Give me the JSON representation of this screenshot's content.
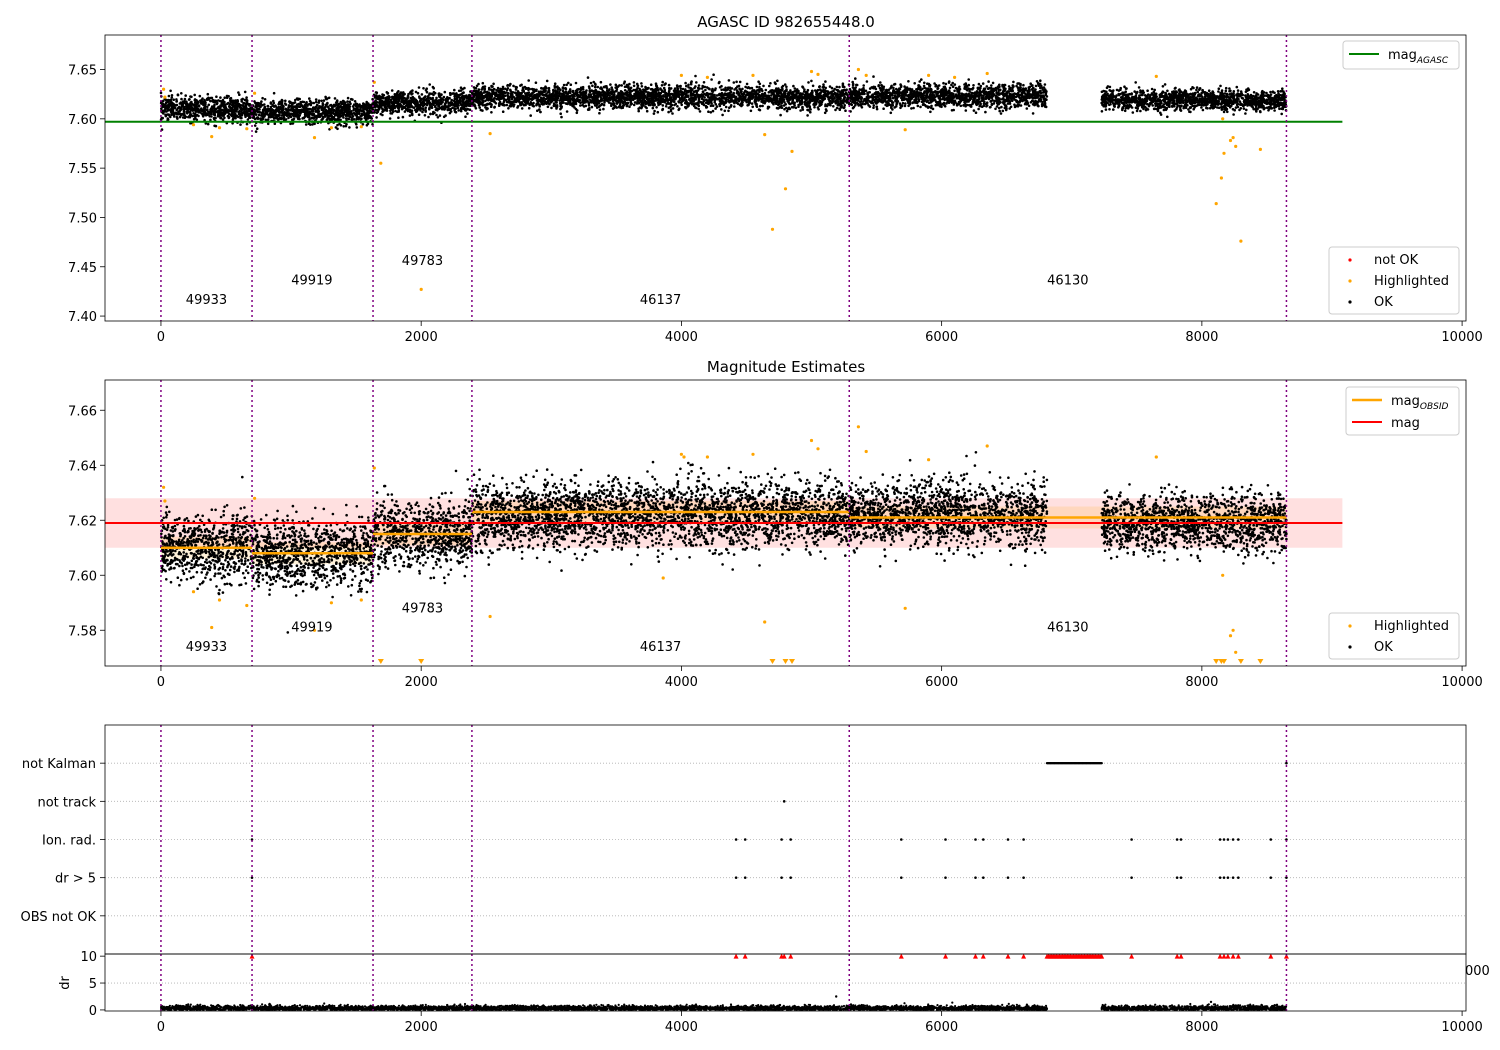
{
  "chart_data": [
    {
      "type": "scatter",
      "title": "AGASC ID 982655448.0",
      "xlim": [
        -430,
        10030
      ],
      "ylim": [
        7.395,
        7.685
      ],
      "xticks": [
        0,
        2000,
        4000,
        6000,
        8000,
        10000
      ],
      "yticks": [
        7.4,
        7.45,
        7.5,
        7.55,
        7.6,
        7.65
      ],
      "obsid_boundaries": [
        0,
        700,
        1630,
        2390,
        5290,
        8650
      ],
      "obsid_labels": [
        {
          "label": "49933",
          "x": 350,
          "y": 7.412
        },
        {
          "label": "49919",
          "x": 1160,
          "y": 7.432
        },
        {
          "label": "49783",
          "x": 2010,
          "y": 7.452
        },
        {
          "label": "46137",
          "x": 3840,
          "y": 7.412
        },
        {
          "label": "46130",
          "x": 6970,
          "y": 7.432
        }
      ],
      "segments": [
        {
          "x0": 0,
          "x1": 700,
          "level": 7.61,
          "spread": 0.006
        },
        {
          "x0": 700,
          "x1": 1630,
          "level": 7.607,
          "spread": 0.006
        },
        {
          "x0": 1630,
          "x1": 2390,
          "level": 7.616,
          "spread": 0.006
        },
        {
          "x0": 2390,
          "x1": 5290,
          "level": 7.622,
          "spread": 0.006
        },
        {
          "x0": 5290,
          "x1": 6810,
          "level": 7.623,
          "spread": 0.006
        },
        {
          "x0": 7230,
          "x1": 8650,
          "level": 7.619,
          "spread": 0.005
        }
      ],
      "mag_agasc": {
        "value": 7.597,
        "x0": -430,
        "x1": 9080,
        "color": "#008000"
      },
      "highlighted_points": [
        [
          20,
          7.63
        ],
        [
          30,
          7.622
        ],
        [
          250,
          7.594
        ],
        [
          390,
          7.582
        ],
        [
          450,
          7.591
        ],
        [
          660,
          7.59
        ],
        [
          720,
          7.626
        ],
        [
          1180,
          7.581
        ],
        [
          1310,
          7.591
        ],
        [
          1540,
          7.592
        ],
        [
          1640,
          7.637
        ],
        [
          1690,
          7.555
        ],
        [
          2000,
          7.427
        ],
        [
          2530,
          7.585
        ],
        [
          4000,
          7.644
        ],
        [
          4200,
          7.642
        ],
        [
          4550,
          7.644
        ],
        [
          4640,
          7.584
        ],
        [
          4700,
          7.488
        ],
        [
          4800,
          7.529
        ],
        [
          4850,
          7.567
        ],
        [
          5000,
          7.648
        ],
        [
          5050,
          7.645
        ],
        [
          5360,
          7.65
        ],
        [
          5420,
          7.644
        ],
        [
          5720,
          7.589
        ],
        [
          5900,
          7.644
        ],
        [
          6100,
          7.642
        ],
        [
          6350,
          7.646
        ],
        [
          7650,
          7.643
        ],
        [
          8110,
          7.514
        ],
        [
          8150,
          7.54
        ],
        [
          8160,
          7.6
        ],
        [
          8170,
          7.565
        ],
        [
          8220,
          7.578
        ],
        [
          8240,
          7.581
        ],
        [
          8260,
          7.572
        ],
        [
          8300,
          7.476
        ],
        [
          8450,
          7.569
        ]
      ],
      "legend_lines": [
        {
          "label": "mag",
          "sub": "AGASC",
          "color": "#008000"
        }
      ],
      "legend_points": [
        {
          "label": "not OK",
          "color": "#ff0000"
        },
        {
          "label": "Highlighted",
          "color": "#ffa500"
        },
        {
          "label": "OK",
          "color": "#000000"
        }
      ]
    },
    {
      "type": "scatter",
      "title": "Magnitude Estimates",
      "xlim": [
        -430,
        10030
      ],
      "ylim": [
        7.567,
        7.671
      ],
      "xticks": [
        0,
        2000,
        4000,
        6000,
        8000,
        10000
      ],
      "yticks": [
        7.58,
        7.6,
        7.62,
        7.64,
        7.66
      ],
      "obsid_boundaries": [
        0,
        700,
        1630,
        2390,
        5290,
        8650
      ],
      "obsid_labels": [
        {
          "label": "49933",
          "x": 350,
          "y": 7.5725
        },
        {
          "label": "49919",
          "x": 1160,
          "y": 7.5795
        },
        {
          "label": "49783",
          "x": 2010,
          "y": 7.5865
        },
        {
          "label": "46137",
          "x": 3840,
          "y": 7.5725
        },
        {
          "label": "46130",
          "x": 6970,
          "y": 7.5795
        }
      ],
      "segments": [
        {
          "x0": 0,
          "x1": 700,
          "level": 7.61,
          "spread": 0.006
        },
        {
          "x0": 700,
          "x1": 1630,
          "level": 7.608,
          "spread": 0.006
        },
        {
          "x0": 1630,
          "x1": 2390,
          "level": 7.615,
          "spread": 0.006
        },
        {
          "x0": 2390,
          "x1": 5290,
          "level": 7.622,
          "spread": 0.006
        },
        {
          "x0": 5290,
          "x1": 6810,
          "level": 7.622,
          "spread": 0.006
        },
        {
          "x0": 7230,
          "x1": 8650,
          "level": 7.619,
          "spread": 0.005
        }
      ],
      "mag_obsid": [
        {
          "x0": 0,
          "x1": 700,
          "value": 7.61
        },
        {
          "x0": 700,
          "x1": 1630,
          "value": 7.608
        },
        {
          "x0": 1630,
          "x1": 2390,
          "value": 7.615
        },
        {
          "x0": 2390,
          "x1": 5290,
          "value": 7.623
        },
        {
          "x0": 5290,
          "x1": 8650,
          "value": 7.621
        }
      ],
      "mag": {
        "value": 7.619,
        "low": 7.61,
        "high": 7.628,
        "x0": -430,
        "x1": 9080,
        "color": "#ff0000"
      },
      "highlighted_points": [
        [
          20,
          7.632
        ],
        [
          30,
          7.627
        ],
        [
          250,
          7.594
        ],
        [
          390,
          7.581
        ],
        [
          450,
          7.591
        ],
        [
          660,
          7.589
        ],
        [
          720,
          7.628
        ],
        [
          1180,
          7.58
        ],
        [
          1310,
          7.59
        ],
        [
          1540,
          7.591
        ],
        [
          1640,
          7.639
        ],
        [
          2530,
          7.585
        ],
        [
          3860,
          7.599
        ],
        [
          4000,
          7.644
        ],
        [
          4020,
          7.643
        ],
        [
          4200,
          7.643
        ],
        [
          4550,
          7.644
        ],
        [
          4640,
          7.583
        ],
        [
          5000,
          7.649
        ],
        [
          5050,
          7.646
        ],
        [
          5360,
          7.654
        ],
        [
          5420,
          7.645
        ],
        [
          5720,
          7.588
        ],
        [
          5900,
          7.642
        ],
        [
          6350,
          7.647
        ],
        [
          7650,
          7.643
        ],
        [
          8160,
          7.6
        ],
        [
          8220,
          7.578
        ],
        [
          8240,
          7.58
        ],
        [
          8260,
          7.572
        ]
      ],
      "clipped_points": [
        1690,
        2000,
        4700,
        4800,
        4850,
        8110,
        8150,
        8170,
        8300,
        8450
      ],
      "legend_lines": [
        {
          "label": "mag",
          "sub": "OBSID",
          "color": "#ffa500"
        },
        {
          "label": "mag",
          "sub": "",
          "color": "#ff0000"
        }
      ],
      "legend_points": [
        {
          "label": "Highlighted",
          "color": "#ffa500"
        },
        {
          "label": "OK",
          "color": "#000000"
        }
      ]
    },
    {
      "type": "scatter",
      "title": "",
      "xlim": [
        -430,
        10030
      ],
      "categories": [
        "not Kalman",
        "not track",
        "Ion. rad.",
        "dr > 5",
        "OBS not OK"
      ],
      "flag_values": [
        4,
        3,
        2,
        1,
        0
      ],
      "obsid_boundaries": [
        0,
        700,
        1630,
        2390,
        5290,
        8650
      ],
      "flag_points": {
        "not Kalman": {
          "ranges": [
            [
              6810,
              7230
            ]
          ],
          "points": [
            8650
          ]
        },
        "not track": {
          "ranges": [],
          "points": [
            4790
          ]
        },
        "Ion. rad.": {
          "ranges": [],
          "points": [
            700,
            4420,
            4490,
            4770,
            4840,
            5690,
            6030,
            6260,
            6320,
            6510,
            6630,
            7460,
            7810,
            7840,
            8140,
            8170,
            8200,
            8240,
            8280,
            8530,
            8650
          ]
        },
        "dr > 5": {
          "ranges": [],
          "points": [
            700,
            4420,
            4490,
            4770,
            4840,
            5690,
            6030,
            6260,
            6320,
            6510,
            6630,
            7460,
            7810,
            7840,
            8140,
            8170,
            8200,
            8240,
            8280,
            8530,
            8650
          ]
        },
        "OBS not OK": {
          "ranges": [],
          "points": []
        }
      },
      "overflow_tick_label": "000"
    },
    {
      "type": "scatter",
      "title": "",
      "ylabel": "dr",
      "xlim": [
        -430,
        10030
      ],
      "ylim": [
        -0.2,
        10.4
      ],
      "xticks": [
        0,
        2000,
        4000,
        6000,
        8000,
        10000
      ],
      "yticks": [
        0,
        5,
        10
      ],
      "obsid_boundaries": [
        0,
        700,
        1630,
        2390,
        5290,
        8650
      ],
      "segments": [
        [
          0,
          6810
        ],
        [
          7230,
          8650
        ]
      ],
      "dr_level": 0.3,
      "dr_spread": 0.25,
      "outliers": [
        [
          5190,
          2.5
        ],
        [
          8070,
          1.5
        ],
        [
          8100,
          1.0
        ],
        [
          2200,
          0.9
        ]
      ],
      "cap_value": 10,
      "cap_ranges": [
        [
          6810,
          7230
        ]
      ],
      "cap_points": [
        700,
        4420,
        4490,
        4770,
        4790,
        4840,
        5690,
        6030,
        6260,
        6320,
        6510,
        6630,
        7460,
        7810,
        7840,
        8140,
        8170,
        8200,
        8240,
        8280,
        8530,
        8650
      ]
    }
  ]
}
